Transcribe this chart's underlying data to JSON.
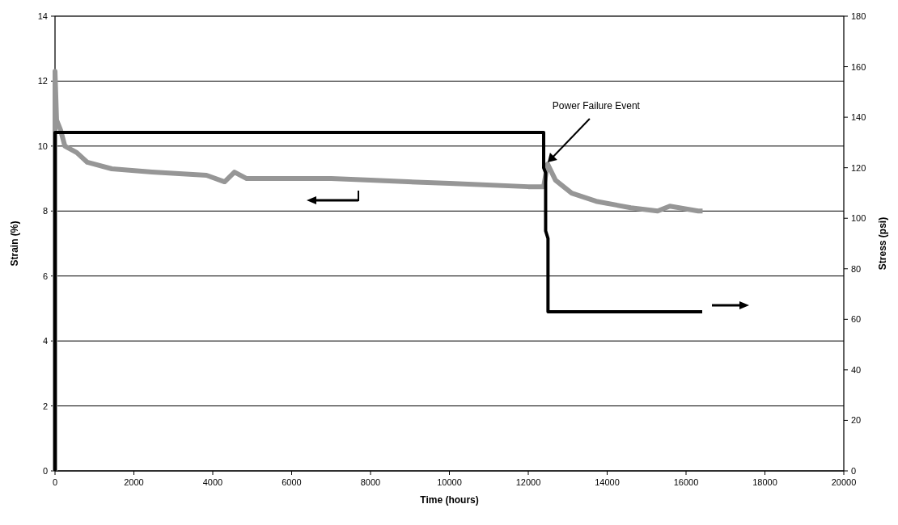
{
  "chart_data": {
    "type": "line",
    "xlabel": "Time (hours)",
    "ylabel": "Strain (%)",
    "y2label": "Stress (psi)",
    "xlim": [
      0,
      20000
    ],
    "xticks": [
      0,
      2000,
      4000,
      6000,
      8000,
      10000,
      12000,
      14000,
      16000,
      18000,
      20000
    ],
    "ylim": [
      0,
      14
    ],
    "yticks": [
      0,
      2,
      4,
      6,
      8,
      10,
      12,
      14
    ],
    "y2lim": [
      0,
      180
    ],
    "y2ticks": [
      0,
      20,
      40,
      60,
      80,
      100,
      120,
      140,
      160,
      180
    ],
    "grid": "y",
    "marker": "none",
    "line_style": "solid",
    "annotations": [
      {
        "text": "Power Failure Event",
        "x": 12490,
        "y": 9.45
      }
    ],
    "series": [
      {
        "color": "#969696",
        "x": [
          0,
          0,
          40,
          140,
          250,
          550,
          820,
          1440,
          2460,
          3840,
          4300,
          4550,
          4860,
          5890,
          7000,
          8000,
          10000,
          12000,
          12390,
          12490,
          12690,
          13100,
          13720,
          14600,
          15280,
          15590,
          16310,
          16420
        ],
        "values": [
          0,
          12.3,
          10.8,
          10.5,
          10.0,
          9.8,
          9.5,
          9.3,
          9.2,
          9.1,
          8.9,
          9.2,
          9.0,
          9.0,
          9.0,
          8.95,
          8.85,
          8.75,
          8.75,
          9.45,
          8.95,
          8.55,
          8.3,
          8.1,
          8.0,
          8.15,
          8.0,
          8.0
        ]
      },
      {
        "color": "#000000",
        "axis": "y2",
        "x": [
          0,
          0,
          12390,
          12390,
          12440,
          12440,
          12500,
          12500,
          16410
        ],
        "values": [
          0,
          134,
          134,
          120,
          118,
          95,
          92,
          63,
          63
        ]
      }
    ]
  }
}
